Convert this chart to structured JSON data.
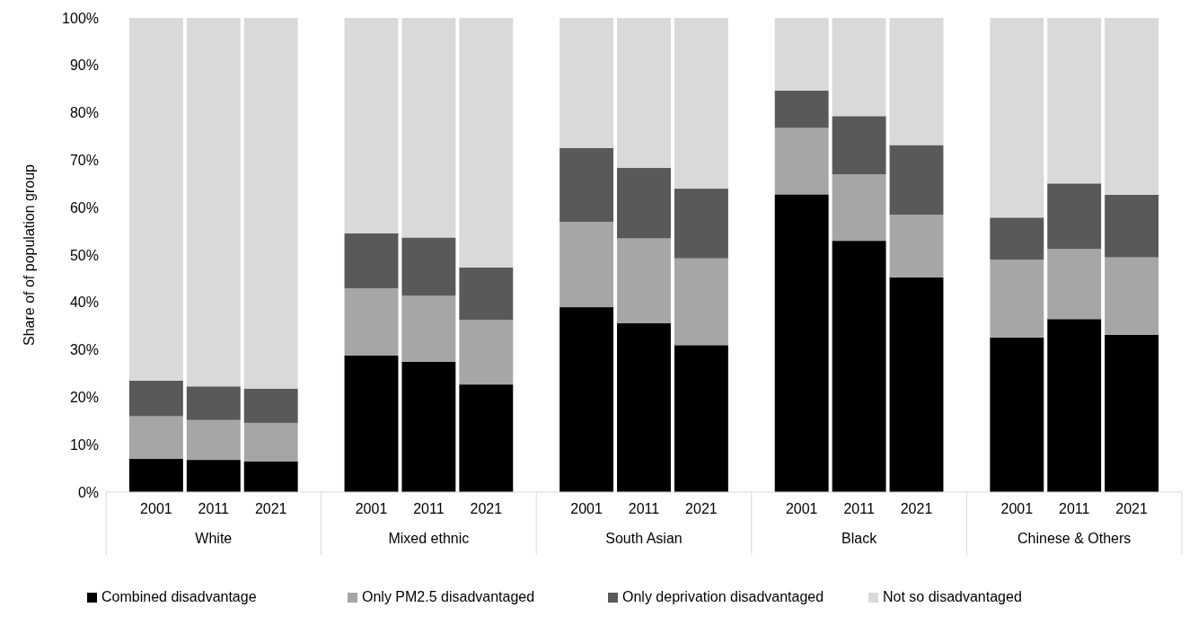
{
  "chart_data": {
    "type": "bar",
    "stacked": true,
    "ylabel": "Share of of population group",
    "categories": [
      "2001",
      "2011",
      "2021",
      "2001",
      "2011",
      "2021",
      "2001",
      "2011",
      "2021",
      "2001",
      "2011",
      "2021",
      "2001",
      "2011",
      "2021"
    ],
    "annotations": [
      "White",
      "Mixed ethnic",
      "South Asian",
      "Black",
      "Chinese & Others"
    ],
    "series": [
      {
        "name": "Combined disadvantage",
        "color": "#000000",
        "values": [
          7,
          6.8,
          6.5,
          28.8,
          27.5,
          22.7,
          39,
          35.6,
          31,
          62.8,
          53,
          45.3,
          32.6,
          36.5,
          33.2
        ]
      },
      {
        "name": "Only PM2.5 disadvantaged",
        "color": "#a6a6a6",
        "values": [
          9,
          8.4,
          8.1,
          14.2,
          13.9,
          13.6,
          18,
          17.9,
          18.3,
          14,
          14,
          13.2,
          16.4,
          14.8,
          16.3
        ]
      },
      {
        "name": "Only deprivation disadvantaged",
        "color": "#595959",
        "values": [
          7.5,
          7.1,
          7.2,
          11.6,
          12.3,
          11.1,
          15.6,
          14.9,
          14.7,
          7.9,
          12.3,
          14.7,
          8.9,
          13.8,
          13.2
        ]
      },
      {
        "name": "Not so disadvantaged",
        "color": "#d9d9d9",
        "values": [
          76.5,
          77.7,
          78.2,
          45.4,
          46.3,
          52.6,
          27.4,
          31.6,
          36,
          15.3,
          20.7,
          26.8,
          42.1,
          34.9,
          37.3
        ]
      }
    ],
    "ylim": [
      0,
      100
    ],
    "yticks": [
      {
        "value": 0,
        "label": "0%"
      },
      {
        "value": 10,
        "label": "10%"
      },
      {
        "value": 20,
        "label": "20%"
      },
      {
        "value": 30,
        "label": "30%"
      },
      {
        "value": 40,
        "label": "40%"
      },
      {
        "value": 50,
        "label": "50%"
      },
      {
        "value": 60,
        "label": "60%"
      },
      {
        "value": 70,
        "label": "70%"
      },
      {
        "value": 80,
        "label": "80%"
      },
      {
        "value": 90,
        "label": "90%"
      },
      {
        "value": 100,
        "label": "100%"
      }
    ],
    "grid": false,
    "legend": "bottom"
  }
}
